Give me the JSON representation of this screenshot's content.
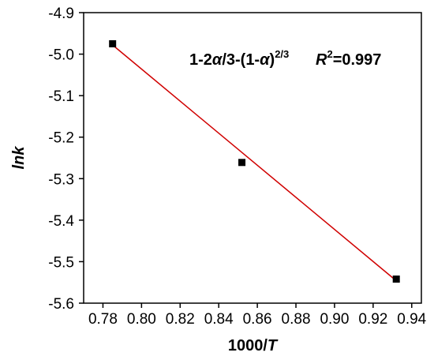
{
  "chart_data": {
    "type": "scatter",
    "xlabel": "1000/T",
    "ylabel": "lnk",
    "xlim": [
      0.77,
      0.945
    ],
    "ylim": [
      -5.6,
      -4.9
    ],
    "xticks": [
      "0.78",
      "0.80",
      "0.82",
      "0.84",
      "0.86",
      "0.88",
      "0.90",
      "0.92",
      "0.94"
    ],
    "yticks": [
      "-4.9",
      "-5.0",
      "-5.1",
      "-5.2",
      "-5.3",
      "-5.4",
      "-5.5",
      "-5.6"
    ],
    "grid": false,
    "series": [
      {
        "points": [
          {
            "x": 0.785,
            "y": -4.975
          },
          {
            "x": 0.852,
            "y": -5.261
          },
          {
            "x": 0.932,
            "y": -5.542
          }
        ],
        "marker": "square",
        "color": "#000000"
      }
    ],
    "fit_line": {
      "x": [
        0.785,
        0.932
      ],
      "y": [
        -4.978,
        -5.546
      ],
      "color": "#d00000"
    },
    "annotation": {
      "model": "1-2α/3-(1-α)2/3",
      "r2": "R2=0.997"
    }
  }
}
